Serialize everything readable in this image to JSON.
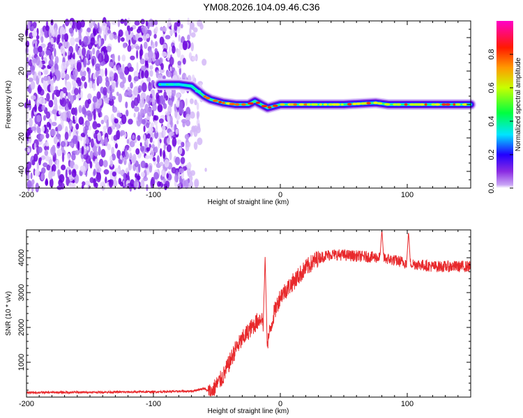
{
  "title": "YM08.2026.104.09.46.C36",
  "colors": {
    "snr_line": "#e8292c",
    "noise_purple": "#7b1fe0",
    "axis": "#000000"
  },
  "chart_data": [
    {
      "type": "heatmap",
      "xlabel": "Height of straight line (km)",
      "ylabel": "Frequency (Hz)",
      "xlim": [
        -200,
        150
      ],
      "ylim": [
        -50,
        50
      ],
      "x_ticks": [
        -200,
        -100,
        0,
        100
      ],
      "y_ticks": [
        -40,
        -20,
        0,
        20,
        40
      ],
      "colorbar": {
        "label": "Normalized spectral amplitude",
        "range": [
          0,
          1
        ],
        "ticks": [
          0.0,
          0.2,
          0.4,
          0.6,
          0.8
        ],
        "tick_labels": [
          "0.0",
          "0.2",
          "0.4",
          "0.6",
          "0.8"
        ],
        "colormap": "rainbow (magenta-blue-cyan-green-yellow-red-magenta)"
      },
      "noise_region_x": [
        -200,
        -57
      ],
      "ridge": [
        {
          "x": -95,
          "y": 12
        },
        {
          "x": -80,
          "y": 12
        },
        {
          "x": -70,
          "y": 11
        },
        {
          "x": -65,
          "y": 8
        },
        {
          "x": -60,
          "y": 5
        },
        {
          "x": -55,
          "y": 3
        },
        {
          "x": -50,
          "y": 2
        },
        {
          "x": -45,
          "y": 1
        },
        {
          "x": -35,
          "y": 0
        },
        {
          "x": -25,
          "y": 0
        },
        {
          "x": -20,
          "y": 2
        },
        {
          "x": -15,
          "y": 0
        },
        {
          "x": -10,
          "y": -2
        },
        {
          "x": -5,
          "y": -1
        },
        {
          "x": 0,
          "y": 0
        },
        {
          "x": 50,
          "y": 0
        },
        {
          "x": 75,
          "y": 1
        },
        {
          "x": 85,
          "y": 0
        },
        {
          "x": 100,
          "y": 0
        },
        {
          "x": 150,
          "y": 0
        }
      ]
    },
    {
      "type": "line",
      "xlabel": "Height of straight line (km)",
      "ylabel": "SNR (10 * v/v)",
      "xlim": [
        -200,
        150
      ],
      "ylim": [
        0,
        4800
      ],
      "x_ticks": [
        -200,
        -100,
        0,
        100
      ],
      "y_ticks": [
        1000,
        2000,
        3000,
        4000
      ],
      "series": [
        {
          "envelope": [
            {
              "x": -200,
              "y": 130
            },
            {
              "x": -150,
              "y": 140
            },
            {
              "x": -100,
              "y": 150
            },
            {
              "x": -70,
              "y": 170
            },
            {
              "x": -60,
              "y": 250
            },
            {
              "x": -55,
              "y": 120
            },
            {
              "x": -45,
              "y": 600
            },
            {
              "x": -35,
              "y": 1400
            },
            {
              "x": -25,
              "y": 1900
            },
            {
              "x": -15,
              "y": 2300
            },
            {
              "x": -10,
              "y": 1600
            },
            {
              "x": -5,
              "y": 2400
            },
            {
              "x": 0,
              "y": 2900
            },
            {
              "x": 10,
              "y": 3300
            },
            {
              "x": 20,
              "y": 3700
            },
            {
              "x": 30,
              "y": 4000
            },
            {
              "x": 40,
              "y": 4100
            },
            {
              "x": 60,
              "y": 4050
            },
            {
              "x": 80,
              "y": 4000
            },
            {
              "x": 100,
              "y": 3850
            },
            {
              "x": 120,
              "y": 3750
            },
            {
              "x": 150,
              "y": 3750
            }
          ],
          "spikes": [
            {
              "x": -12,
              "y": 4050
            },
            {
              "x": 80,
              "y": 4800
            },
            {
              "x": 101,
              "y": 4750
            }
          ]
        }
      ]
    }
  ]
}
